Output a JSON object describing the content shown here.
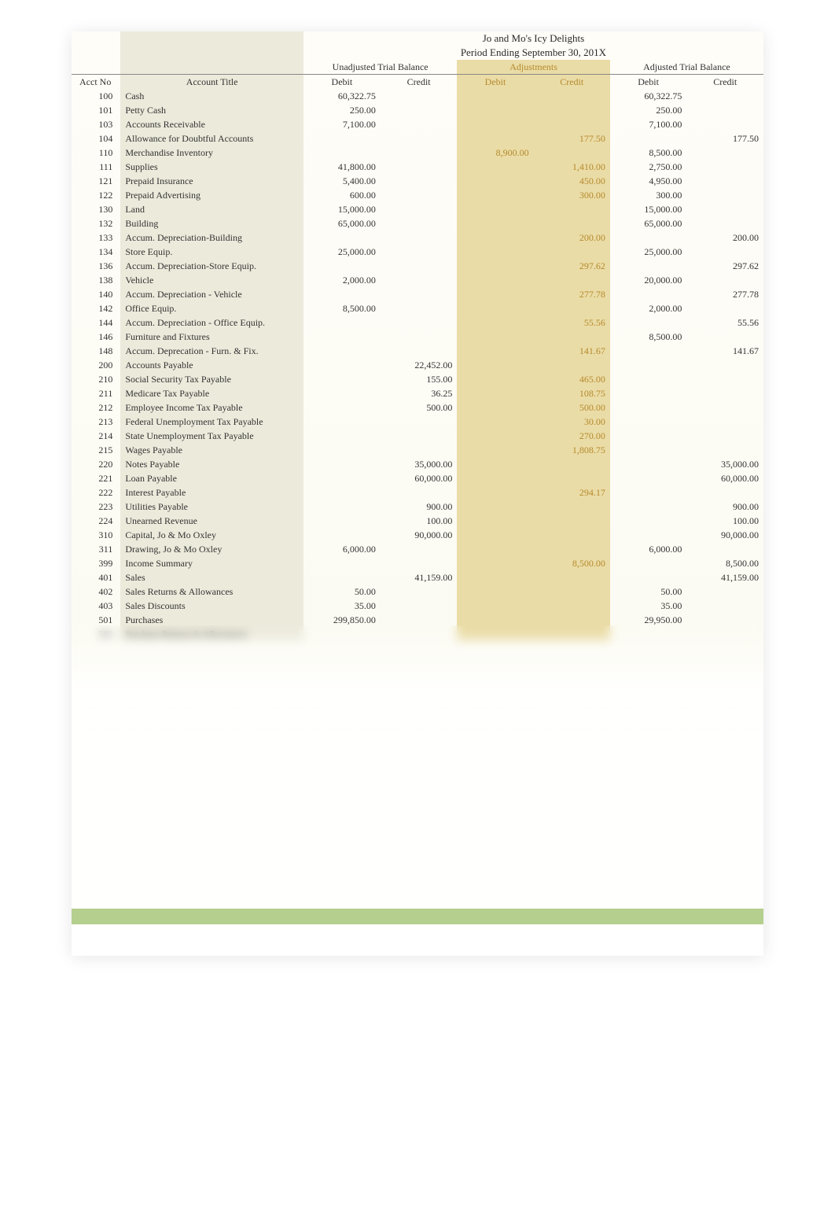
{
  "header": {
    "company": "Jo and Mo's Icy Delights",
    "period": "Period Ending September 30, 201X"
  },
  "groupHeaders": {
    "unadjusted": "Unadjusted Trial Balance",
    "adjustments": "Adjustments",
    "adjusted": "Adjusted Trial Balance"
  },
  "columnHeaders": {
    "acctNo": "Acct No",
    "acctTitle": "Account Title",
    "debit": "Debit",
    "credit": "Credit"
  },
  "colors": {
    "pageBg": "#fbfaf0",
    "titleColBg": "#eceadb",
    "adjBg": "#eadca6",
    "adjText": "#b58a2e",
    "greenBar": "#b5cf8f",
    "border": "#888888"
  },
  "rows": [
    {
      "no": "100",
      "title": "Cash",
      "uDr": "60,322.75",
      "uCr": "",
      "aDr": "",
      "aCr": "",
      "jDr": "60,322.75",
      "jCr": ""
    },
    {
      "no": "101",
      "title": "Petty Cash",
      "uDr": "250.00",
      "uCr": "",
      "aDr": "",
      "aCr": "",
      "jDr": "250.00",
      "jCr": ""
    },
    {
      "no": "103",
      "title": "Accounts Receivable",
      "uDr": "7,100.00",
      "uCr": "",
      "aDr": "",
      "aCr": "",
      "jDr": "7,100.00",
      "jCr": ""
    },
    {
      "no": "104",
      "title": "Allowance for Doubtful Accounts",
      "uDr": "",
      "uCr": "",
      "aDr": "",
      "aCr": "177.50",
      "jDr": "",
      "jCr": "177.50"
    },
    {
      "no": "110",
      "title": "Merchandise Inventory",
      "uDr": "",
      "uCr": "",
      "aDr": "8,900.00",
      "aCr": "",
      "jDr": "8,500.00",
      "jCr": ""
    },
    {
      "no": "111",
      "title": "Supplies",
      "uDr": "41,800.00",
      "uCr": "",
      "aDr": "",
      "aCr": "1,410.00",
      "jDr": "2,750.00",
      "jCr": ""
    },
    {
      "no": "121",
      "title": "Prepaid Insurance",
      "uDr": "5,400.00",
      "uCr": "",
      "aDr": "",
      "aCr": "450.00",
      "jDr": "4,950.00",
      "jCr": ""
    },
    {
      "no": "122",
      "title": "Prepaid Advertising",
      "uDr": "600.00",
      "uCr": "",
      "aDr": "",
      "aCr": "300.00",
      "jDr": "300.00",
      "jCr": ""
    },
    {
      "no": "130",
      "title": "Land",
      "uDr": "15,000.00",
      "uCr": "",
      "aDr": "",
      "aCr": "",
      "jDr": "15,000.00",
      "jCr": ""
    },
    {
      "no": "132",
      "title": "Building",
      "uDr": "65,000.00",
      "uCr": "",
      "aDr": "",
      "aCr": "",
      "jDr": "65,000.00",
      "jCr": ""
    },
    {
      "no": "133",
      "title": "Accum. Depreciation-Building",
      "uDr": "",
      "uCr": "",
      "aDr": "",
      "aCr": "200.00",
      "jDr": "",
      "jCr": "200.00"
    },
    {
      "no": "134",
      "title": "Store Equip.",
      "uDr": "25,000.00",
      "uCr": "",
      "aDr": "",
      "aCr": "",
      "jDr": "25,000.00",
      "jCr": ""
    },
    {
      "no": "136",
      "title": "Accum. Depreciation-Store Equip.",
      "uDr": "",
      "uCr": "",
      "aDr": "",
      "aCr": "297.62",
      "jDr": "",
      "jCr": "297.62"
    },
    {
      "no": "138",
      "title": "Vehicle",
      "uDr": "2,000.00",
      "uCr": "",
      "aDr": "",
      "aCr": "",
      "jDr": "20,000.00",
      "jCr": ""
    },
    {
      "no": "140",
      "title": "Accum. Depreciation - Vehicle",
      "uDr": "",
      "uCr": "",
      "aDr": "",
      "aCr": "277.78",
      "jDr": "",
      "jCr": "277.78"
    },
    {
      "no": "142",
      "title": "Office Equip.",
      "uDr": "8,500.00",
      "uCr": "",
      "aDr": "",
      "aCr": "",
      "jDr": "2,000.00",
      "jCr": ""
    },
    {
      "no": "144",
      "title": "Accum. Depreciation - Office Equip.",
      "uDr": "",
      "uCr": "",
      "aDr": "",
      "aCr": "55.56",
      "jDr": "",
      "jCr": "55.56"
    },
    {
      "no": "146",
      "title": "Furniture and Fixtures",
      "uDr": "",
      "uCr": "",
      "aDr": "",
      "aCr": "",
      "jDr": "8,500.00",
      "jCr": ""
    },
    {
      "no": "148",
      "title": "Accum. Deprecation - Furn. & Fix.",
      "uDr": "",
      "uCr": "",
      "aDr": "",
      "aCr": "141.67",
      "jDr": "",
      "jCr": "141.67"
    },
    {
      "no": "200",
      "title": "Accounts Payable",
      "uDr": "",
      "uCr": "22,452.00",
      "aDr": "",
      "aCr": "",
      "jDr": "",
      "jCr": ""
    },
    {
      "no": "210",
      "title": "Social Security Tax Payable",
      "uDr": "",
      "uCr": "155.00",
      "aDr": "",
      "aCr": "465.00",
      "jDr": "",
      "jCr": ""
    },
    {
      "no": "211",
      "title": "Medicare Tax Payable",
      "uDr": "",
      "uCr": "36.25",
      "aDr": "",
      "aCr": "108.75",
      "jDr": "",
      "jCr": ""
    },
    {
      "no": "212",
      "title": "Employee Income Tax Payable",
      "uDr": "",
      "uCr": "500.00",
      "aDr": "",
      "aCr": "500.00",
      "jDr": "",
      "jCr": ""
    },
    {
      "no": "213",
      "title": "Federal Unemployment Tax Payable",
      "uDr": "",
      "uCr": "",
      "aDr": "",
      "aCr": "30.00",
      "jDr": "",
      "jCr": ""
    },
    {
      "no": "214",
      "title": "State Unemployment Tax Payable",
      "uDr": "",
      "uCr": "",
      "aDr": "",
      "aCr": "270.00",
      "jDr": "",
      "jCr": ""
    },
    {
      "no": "215",
      "title": "Wages Payable",
      "uDr": "",
      "uCr": "",
      "aDr": "",
      "aCr": "1,808.75",
      "jDr": "",
      "jCr": ""
    },
    {
      "no": "220",
      "title": "Notes Payable",
      "uDr": "",
      "uCr": "35,000.00",
      "aDr": "",
      "aCr": "",
      "jDr": "",
      "jCr": "35,000.00"
    },
    {
      "no": "221",
      "title": "Loan Payable",
      "uDr": "",
      "uCr": "60,000.00",
      "aDr": "",
      "aCr": "",
      "jDr": "",
      "jCr": "60,000.00"
    },
    {
      "no": "222",
      "title": "Interest Payable",
      "uDr": "",
      "uCr": "",
      "aDr": "",
      "aCr": "294.17",
      "jDr": "",
      "jCr": ""
    },
    {
      "no": "223",
      "title": "Utilities Payable",
      "uDr": "",
      "uCr": "900.00",
      "aDr": "",
      "aCr": "",
      "jDr": "",
      "jCr": "900.00"
    },
    {
      "no": "224",
      "title": "Unearned Revenue",
      "uDr": "",
      "uCr": "100.00",
      "aDr": "",
      "aCr": "",
      "jDr": "",
      "jCr": "100.00"
    },
    {
      "no": "310",
      "title": "Capital, Jo & Mo Oxley",
      "uDr": "",
      "uCr": "90,000.00",
      "aDr": "",
      "aCr": "",
      "jDr": "",
      "jCr": "90,000.00"
    },
    {
      "no": "311",
      "title": "Drawing, Jo & Mo Oxley",
      "uDr": "6,000.00",
      "uCr": "",
      "aDr": "",
      "aCr": "",
      "jDr": "6,000.00",
      "jCr": ""
    },
    {
      "no": "399",
      "title": "Income Summary",
      "uDr": "",
      "uCr": "",
      "aDr": "",
      "aCr": "8,500.00",
      "jDr": "",
      "jCr": "8,500.00"
    },
    {
      "no": "401",
      "title": "Sales",
      "uDr": "",
      "uCr": "41,159.00",
      "aDr": "",
      "aCr": "",
      "jDr": "",
      "jCr": "41,159.00"
    },
    {
      "no": "402",
      "title": "Sales Returns & Allowances",
      "uDr": "50.00",
      "uCr": "",
      "aDr": "",
      "aCr": "",
      "jDr": "50.00",
      "jCr": ""
    },
    {
      "no": "403",
      "title": "Sales Discounts",
      "uDr": "35.00",
      "uCr": "",
      "aDr": "",
      "aCr": "",
      "jDr": "35.00",
      "jCr": ""
    },
    {
      "no": "501",
      "title": "Purchases",
      "uDr": "299,850.00",
      "uCr": "",
      "aDr": "",
      "aCr": "",
      "jDr": "29,950.00",
      "jCr": ""
    },
    {
      "no": "502",
      "title": "Purchase Returns & Allowances",
      "uDr": "",
      "uCr": "",
      "aDr": "",
      "aCr": "",
      "jDr": "",
      "jCr": ""
    }
  ]
}
